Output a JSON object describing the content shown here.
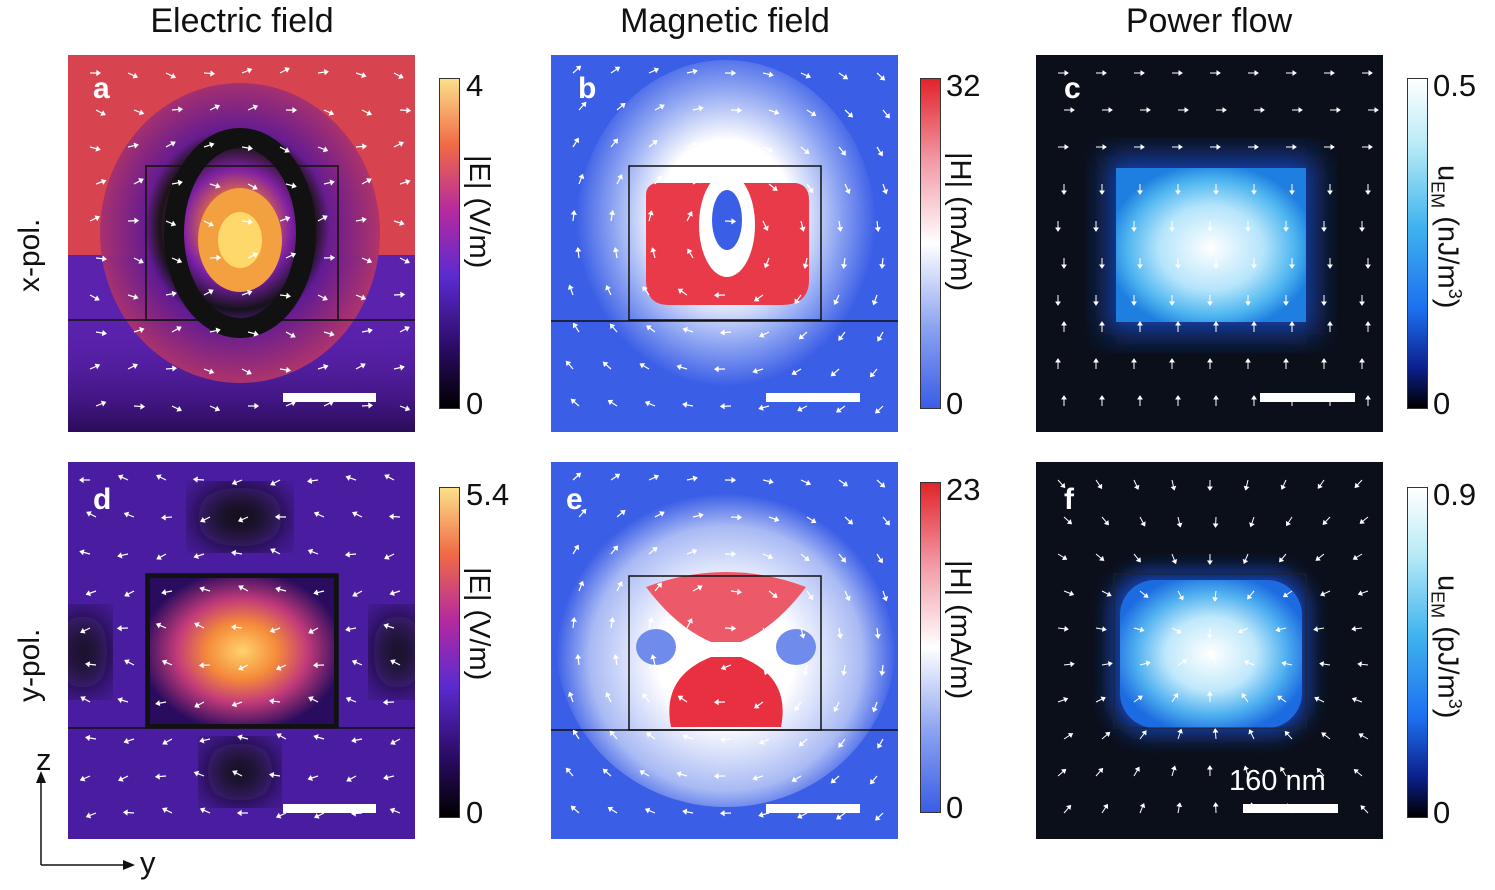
{
  "columns": {
    "electric": "Electric field",
    "magnetic": "Magnetic field",
    "power": "Power flow"
  },
  "rows": {
    "x": "x-pol.",
    "y": "y-pol."
  },
  "panels": {
    "a": {
      "label": "a",
      "cbar_max": "4",
      "cbar_min": "0",
      "cbar_label": "|E| (V/m)",
      "colormap": "plasma"
    },
    "b": {
      "label": "b",
      "cbar_max": "32",
      "cbar_min": "0",
      "cbar_label": "|H| (mA/m)",
      "colormap": "bwr"
    },
    "c": {
      "label": "c",
      "cbar_max": "0.5",
      "cbar_min": "0",
      "cbar_label": "u_EM (nJ/m^3)",
      "colormap": "blue-white"
    },
    "d": {
      "label": "d",
      "cbar_max": "5.4",
      "cbar_min": "0",
      "cbar_label": "|E| (V/m)",
      "colormap": "plasma"
    },
    "e": {
      "label": "e",
      "cbar_max": "23",
      "cbar_min": "0",
      "cbar_label": "|H| (mA/m)",
      "colormap": "bwr"
    },
    "f": {
      "label": "f",
      "cbar_max": "0.9",
      "cbar_min": "0",
      "cbar_label": "u_EM (pJ/m^3)",
      "colormap": "blue-white"
    }
  },
  "scalebar_text": "160 nm",
  "axes": {
    "vertical": "z",
    "horizontal": "y"
  },
  "colors": {
    "plasma_bg": "#6a2aa8",
    "plasma_hot": "#f7e27a",
    "bwr_bg": "#3b5ee6",
    "bwr_hot": "#e5262a",
    "dark": "#0b0f1a",
    "glow": "#e8f7ff"
  }
}
